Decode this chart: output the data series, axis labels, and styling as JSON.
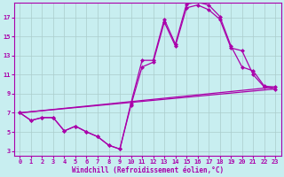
{
  "background_color": "#c8eef0",
  "line_color": "#aa00aa",
  "grid_color": "#aacccc",
  "xlim": [
    -0.5,
    23.5
  ],
  "ylim": [
    2.5,
    18.5
  ],
  "xticks": [
    0,
    1,
    2,
    3,
    4,
    5,
    6,
    7,
    8,
    9,
    10,
    11,
    12,
    13,
    14,
    15,
    16,
    17,
    18,
    19,
    20,
    21,
    22,
    23
  ],
  "yticks": [
    3,
    5,
    7,
    9,
    11,
    13,
    15,
    17
  ],
  "xlabel": "Windchill (Refroidissement éolien,°C)",
  "curve_main_x": [
    0,
    1,
    2,
    3,
    4,
    5,
    6,
    7,
    8,
    9,
    10,
    11,
    12,
    13,
    14,
    15,
    16,
    17,
    18,
    19,
    20,
    21,
    22,
    23
  ],
  "curve_main_y": [
    7.0,
    6.2,
    6.5,
    6.5,
    5.1,
    5.6,
    5.0,
    4.5,
    3.6,
    3.2,
    8.0,
    12.5,
    12.5,
    16.8,
    14.2,
    18.4,
    18.6,
    18.3,
    17.1,
    14.0,
    11.8,
    11.4,
    9.8,
    9.7
  ],
  "curve_lower_x": [
    0,
    1,
    2,
    3,
    4,
    5,
    6,
    7,
    8,
    9,
    10,
    11,
    12,
    13,
    14,
    15,
    16,
    17,
    18,
    19,
    20,
    21,
    22,
    23
  ],
  "curve_lower_y": [
    7.0,
    6.2,
    6.5,
    6.5,
    5.1,
    5.6,
    5.0,
    4.5,
    3.6,
    3.2,
    7.8,
    11.8,
    12.3,
    16.5,
    14.0,
    18.0,
    18.3,
    17.8,
    16.8,
    13.8,
    13.5,
    11.0,
    9.7,
    9.5
  ],
  "line1_x": [
    0,
    23
  ],
  "line1_y": [
    7.0,
    9.7
  ],
  "line2_x": [
    0,
    23
  ],
  "line2_y": [
    7.0,
    9.5
  ],
  "tick_fontsize": 5,
  "label_fontsize": 5.5
}
